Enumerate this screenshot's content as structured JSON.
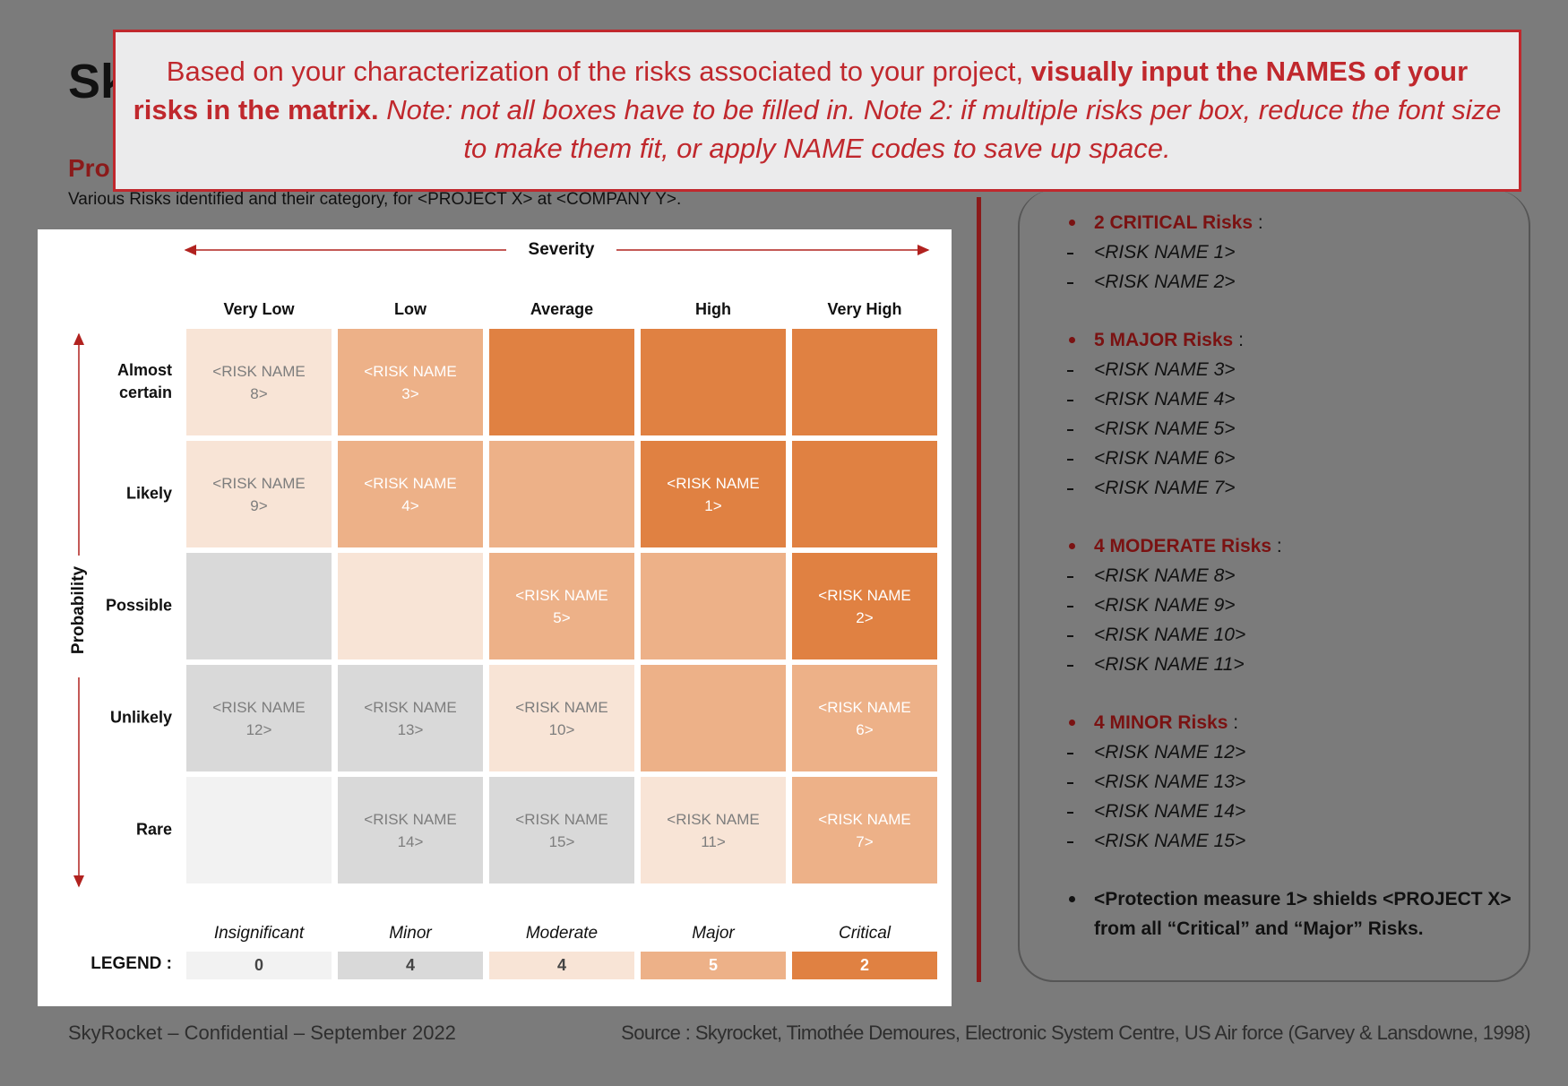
{
  "title_fragment": "Sk",
  "section_fragment": "Pro",
  "subtitle": "Various Risks identified and their category, for <PROJECT X> at <COMPANY Y>.",
  "banner": {
    "text": "Based on your characterization of the risks associated to your project,",
    "bold": "visually input the NAMES of your risks in the matrix.",
    "italic": "Note: not all boxes have to be filled in. Note 2: if multiple risks per box, reduce the font size to make them fit, or apply NAME codes to save up space."
  },
  "matrix": {
    "severity_label": "Severity",
    "probability_label": "Probability",
    "columns": [
      "Very Low",
      "Low",
      "Average",
      "High",
      "Very High"
    ],
    "rows": [
      "Almost certain",
      "Likely",
      "Possible",
      "Unlikely",
      "Rare"
    ],
    "cells": [
      [
        "<RISK NAME 8>",
        "<RISK NAME 3>",
        null,
        null,
        null
      ],
      [
        "<RISK NAME 9>",
        "<RISK NAME 4>",
        null,
        "<RISK NAME 1>",
        null
      ],
      [
        null,
        null,
        "<RISK NAME 5>",
        null,
        "<RISK NAME 2>"
      ],
      [
        "<RISK NAME 12>",
        "<RISK NAME 13>",
        "<RISK NAME 10>",
        null,
        "<RISK NAME 6>"
      ],
      [
        null,
        "<RISK NAME 14>",
        "<RISK NAME 15>",
        "<RISK NAME 11>",
        "<RISK NAME 7>"
      ]
    ]
  },
  "legend": {
    "title": "LEGEND :",
    "items": [
      {
        "label": "Insignificant",
        "count": 0
      },
      {
        "label": "Minor",
        "count": 4
      },
      {
        "label": "Moderate",
        "count": 4
      },
      {
        "label": "Major",
        "count": 5
      },
      {
        "label": "Critical",
        "count": 2
      }
    ]
  },
  "summary": {
    "groups": [
      {
        "label": "2 CRITICAL Risks",
        "suffix": ":",
        "items": [
          "<RISK NAME 1>",
          "<RISK NAME 2>"
        ]
      },
      {
        "label": "5 MAJOR Risks",
        "suffix": ":",
        "items": [
          "<RISK NAME 3>",
          "<RISK NAME 4>",
          "<RISK NAME 5>",
          "<RISK NAME 6>",
          "<RISK NAME 7>"
        ]
      },
      {
        "label": "4 MODERATE Risks",
        "suffix": ":",
        "items": [
          "<RISK NAME 8>",
          "<RISK NAME 9>",
          "<RISK NAME 10>",
          "<RISK NAME 11>"
        ]
      },
      {
        "label": "4 MINOR Risks",
        "suffix": ":",
        "items": [
          "<RISK NAME 12>",
          "<RISK NAME 13>",
          "<RISK NAME 14>",
          "<RISK NAME 15>"
        ]
      }
    ],
    "note": "<Protection measure 1> shields <PROJECT X> from all “Critical” and “Major” Risks."
  },
  "footer": {
    "left": "SkyRocket – Confidential – September 2022",
    "source": "Source : Skyrocket, Timothée Demoures, Electronic System Centre, US Air force (Garvey & Lansdowne, 1998)"
  }
}
